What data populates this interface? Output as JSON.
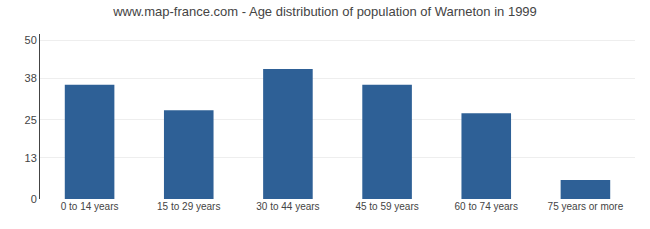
{
  "chart_data": {
    "type": "bar",
    "title": "www.map-france.com - Age distribution of population of Warneton in 1999",
    "categories": [
      "0 to 14 years",
      "15 to 29 years",
      "30 to 44 years",
      "45 to 59 years",
      "60 to 74 years",
      "75 years or more"
    ],
    "values": [
      36,
      28,
      41,
      36,
      27,
      6
    ],
    "color": "#2e6096",
    "ylim": [
      0,
      52
    ],
    "yticks": [
      0,
      13,
      25,
      38,
      50
    ],
    "grid": true
  }
}
